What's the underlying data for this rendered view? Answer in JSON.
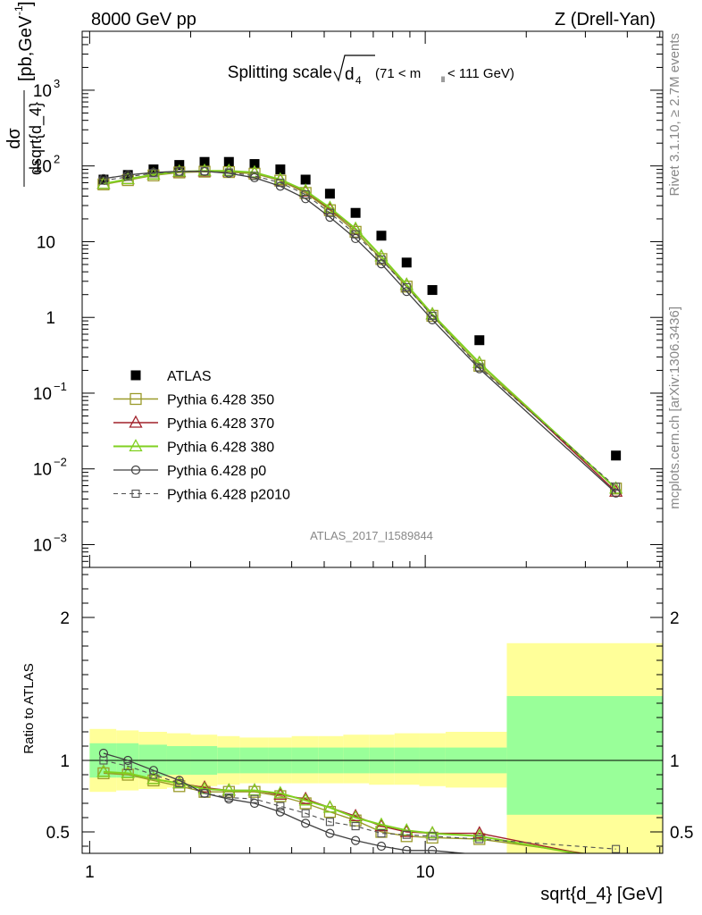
{
  "header": {
    "left": "8000 GeV pp",
    "right": "Z (Drell-Yan)"
  },
  "side_labels": {
    "rivet": "Rivet 3.1.10, ≥ 2.7M events",
    "mcplots": "mcplots.cern.ch [arXiv:1306.3436]"
  },
  "colors": {
    "atlas": "#000000",
    "p350": "#9a9a2a",
    "p370": "#a0202a",
    "p380": "#80d020",
    "p0": "#404040",
    "p2010": "#505050",
    "band_inner": "#99ff99",
    "band_outer": "#ffff99"
  },
  "chart_data": [
    {
      "type": "scatter",
      "panel": "main",
      "title": "Splitting scale √d4 (71 < mll < 111 GeV)",
      "title_parts": {
        "main": "Splitting scale",
        "sub": "4",
        "tail": " (71 < m",
        "tail_sub": "ll",
        "tail_end": " < 111 GeV)"
      },
      "ylabel": "dσ / dsqrt{d_4} [pb,GeV⁻¹]",
      "y_scale": "log",
      "ylim": [
        0.0005,
        6000
      ],
      "y_ticks": [
        {
          "v": 0.001,
          "base": "10",
          "exp": "−3"
        },
        {
          "v": 0.01,
          "base": "10",
          "exp": "−2"
        },
        {
          "v": 0.1,
          "base": "10",
          "exp": "−1"
        },
        {
          "v": 1,
          "base": "1",
          "exp": ""
        },
        {
          "v": 10,
          "base": "10",
          "exp": ""
        },
        {
          "v": 100,
          "base": "10",
          "exp": "2"
        },
        {
          "v": 1000,
          "base": "10",
          "exp": "3"
        }
      ],
      "watermark": "ATLAS_2017_I1589844",
      "legend_position": "bottom-left",
      "x": [
        1.1,
        1.3,
        1.55,
        1.85,
        2.2,
        2.6,
        3.1,
        3.7,
        4.4,
        5.2,
        6.2,
        7.4,
        8.8,
        10.5,
        14.5,
        37
      ],
      "series": [
        {
          "name": "ATLAS",
          "marker": "filled-square",
          "values": [
            66,
            76,
            90,
            103,
            113,
            113,
            106,
            90,
            66,
            43,
            24,
            12,
            5.3,
            2.3,
            0.5,
            0.015
          ]
        },
        {
          "name": "Pythia 6.428 350",
          "marker": "open-square",
          "values": [
            57,
            65,
            75,
            82,
            84,
            83,
            79,
            64,
            44,
            26,
            13.5,
            5.9,
            2.55,
            1.05,
            0.23,
            0.0055
          ]
        },
        {
          "name": "Pythia 6.428 370",
          "marker": "open-triangle",
          "values": [
            58,
            67,
            77,
            83,
            85,
            85,
            81,
            65,
            46,
            27,
            14.5,
            6.4,
            2.7,
            1.1,
            0.25,
            0.005
          ]
        },
        {
          "name": "Pythia 6.428 380",
          "marker": "open-triangle",
          "values": [
            58,
            67,
            77,
            84,
            86,
            86,
            82,
            66,
            47,
            28,
            14.8,
            6.4,
            2.7,
            1.1,
            0.25,
            0.0055
          ]
        },
        {
          "name": "Pythia 6.428 p0",
          "marker": "open-circle",
          "values": [
            68,
            76,
            82,
            85,
            85,
            80,
            70,
            54,
            37,
            21,
            11,
            5.1,
            2.2,
            0.93,
            0.21,
            0.0048
          ]
        },
        {
          "name": "Pythia 6.428 p2010",
          "marker": "open-square-dashed",
          "values": [
            64,
            72,
            80,
            84,
            85,
            82,
            74,
            60,
            42,
            24,
            12.5,
            5.8,
            2.5,
            1.05,
            0.22,
            0.0058
          ]
        }
      ]
    },
    {
      "type": "line",
      "panel": "ratio",
      "ylabel": "Ratio to ATLAS",
      "xlabel": "sqrt{d_4} [GeV]",
      "x_scale": "log",
      "xlim": [
        0.95,
        51
      ],
      "ylim": [
        0.35,
        2.35
      ],
      "y_ticks": [
        "0.5",
        "1",
        "2"
      ],
      "x_tick_labels": [
        "1",
        "10"
      ],
      "bins": [
        [
          1.0,
          1.2
        ],
        [
          1.2,
          1.4
        ],
        [
          1.4,
          1.7
        ],
        [
          1.7,
          2.0
        ],
        [
          2.0,
          2.4
        ],
        [
          2.4,
          2.8
        ],
        [
          2.8,
          3.4
        ],
        [
          3.4,
          4.0
        ],
        [
          4.0,
          4.8
        ],
        [
          4.8,
          5.7
        ],
        [
          5.7,
          6.8
        ],
        [
          6.8,
          8.1
        ],
        [
          8.1,
          9.6
        ],
        [
          9.6,
          11.5
        ],
        [
          11.5,
          17.5
        ],
        [
          17.5,
          51
        ]
      ],
      "band_inner": [
        [
          0.88,
          1.12
        ],
        [
          0.88,
          1.12
        ],
        [
          0.89,
          1.11
        ],
        [
          0.9,
          1.1
        ],
        [
          0.9,
          1.1
        ],
        [
          0.91,
          1.09
        ],
        [
          0.91,
          1.09
        ],
        [
          0.91,
          1.09
        ],
        [
          0.91,
          1.09
        ],
        [
          0.91,
          1.09
        ],
        [
          0.91,
          1.09
        ],
        [
          0.91,
          1.09
        ],
        [
          0.91,
          1.09
        ],
        [
          0.91,
          1.09
        ],
        [
          0.91,
          1.09
        ],
        [
          0.62,
          1.45
        ]
      ],
      "band_outer": [
        [
          0.78,
          1.22
        ],
        [
          0.79,
          1.21
        ],
        [
          0.8,
          1.2
        ],
        [
          0.81,
          1.19
        ],
        [
          0.82,
          1.18
        ],
        [
          0.83,
          1.17
        ],
        [
          0.84,
          1.16
        ],
        [
          0.84,
          1.16
        ],
        [
          0.84,
          1.17
        ],
        [
          0.84,
          1.17
        ],
        [
          0.84,
          1.18
        ],
        [
          0.83,
          1.18
        ],
        [
          0.83,
          1.19
        ],
        [
          0.82,
          1.19
        ],
        [
          0.81,
          1.2
        ],
        [
          0.32,
          1.82
        ]
      ],
      "x": [
        1.1,
        1.3,
        1.55,
        1.85,
        2.2,
        2.6,
        3.1,
        3.7,
        4.4,
        5.2,
        6.2,
        7.4,
        8.8,
        10.5,
        14.5,
        37
      ],
      "series": [
        {
          "name": "Pythia 6.428 350",
          "values": [
            0.91,
            0.9,
            0.86,
            0.82,
            0.78,
            0.78,
            0.78,
            0.75,
            0.7,
            0.64,
            0.58,
            0.5,
            0.47,
            0.46,
            0.45,
            0.32
          ]
        },
        {
          "name": "Pythia 6.428 370",
          "values": [
            0.92,
            0.91,
            0.87,
            0.84,
            0.81,
            0.79,
            0.79,
            0.76,
            0.73,
            0.67,
            0.61,
            0.54,
            0.5,
            0.49,
            0.49,
            0.3
          ]
        },
        {
          "name": "Pythia 6.428 380",
          "values": [
            0.92,
            0.91,
            0.87,
            0.84,
            0.8,
            0.79,
            0.79,
            0.77,
            0.72,
            0.67,
            0.6,
            0.55,
            0.51,
            0.49,
            0.47,
            0.3
          ]
        },
        {
          "name": "Pythia 6.428 p0",
          "values": [
            1.05,
            1.0,
            0.93,
            0.86,
            0.77,
            0.73,
            0.7,
            0.64,
            0.56,
            0.49,
            0.44,
            0.4,
            0.37,
            0.37,
            0.34,
            0.3
          ]
        },
        {
          "name": "Pythia 6.428 p2010",
          "values": [
            1.0,
            0.96,
            0.9,
            0.84,
            0.77,
            0.74,
            0.73,
            0.68,
            0.63,
            0.57,
            0.54,
            0.49,
            0.48,
            0.47,
            0.45,
            0.38
          ]
        }
      ]
    }
  ]
}
